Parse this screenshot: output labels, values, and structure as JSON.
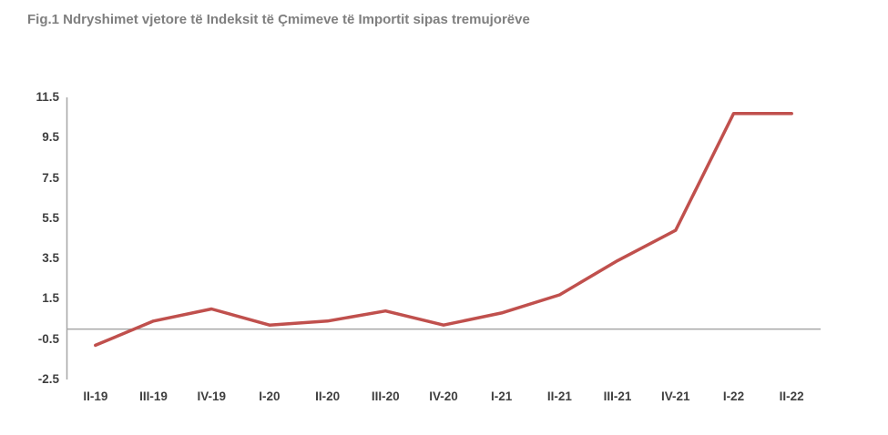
{
  "figure": {
    "title": "Fig.1 Ndryshimet vjetore të Indeksit të Çmimeve të Importit sipas tremujorëve"
  },
  "chart_data": {
    "type": "line",
    "title": "Fig.1 Ndryshimet vjetore të Indeksit të Çmimeve të Importit sipas tremujorëve",
    "categories": [
      "II-19",
      "III-19",
      "IV-19",
      "I-20",
      "II-20",
      "III-20",
      "IV-20",
      "I-21",
      "II-21",
      "III-21",
      "IV-21",
      "I-22",
      "II-22"
    ],
    "values": [
      -0.8,
      0.4,
      1.0,
      0.2,
      0.4,
      0.9,
      0.2,
      0.8,
      1.7,
      3.4,
      4.9,
      10.7,
      10.7
    ],
    "xlabel": "",
    "ylabel": "",
    "ylim": [
      -2.5,
      11.5
    ],
    "yticks": [
      11.5,
      9.5,
      7.5,
      5.5,
      3.5,
      1.5,
      -0.5,
      -2.5
    ],
    "grid": false,
    "legend": "none",
    "zero_baseline": true,
    "colors": {
      "line": "#C0504D",
      "axis": "#A6A6A6",
      "title_text": "#7F7F7F",
      "tick_text": "#3F3F3F",
      "background": "#FFFFFF"
    }
  }
}
